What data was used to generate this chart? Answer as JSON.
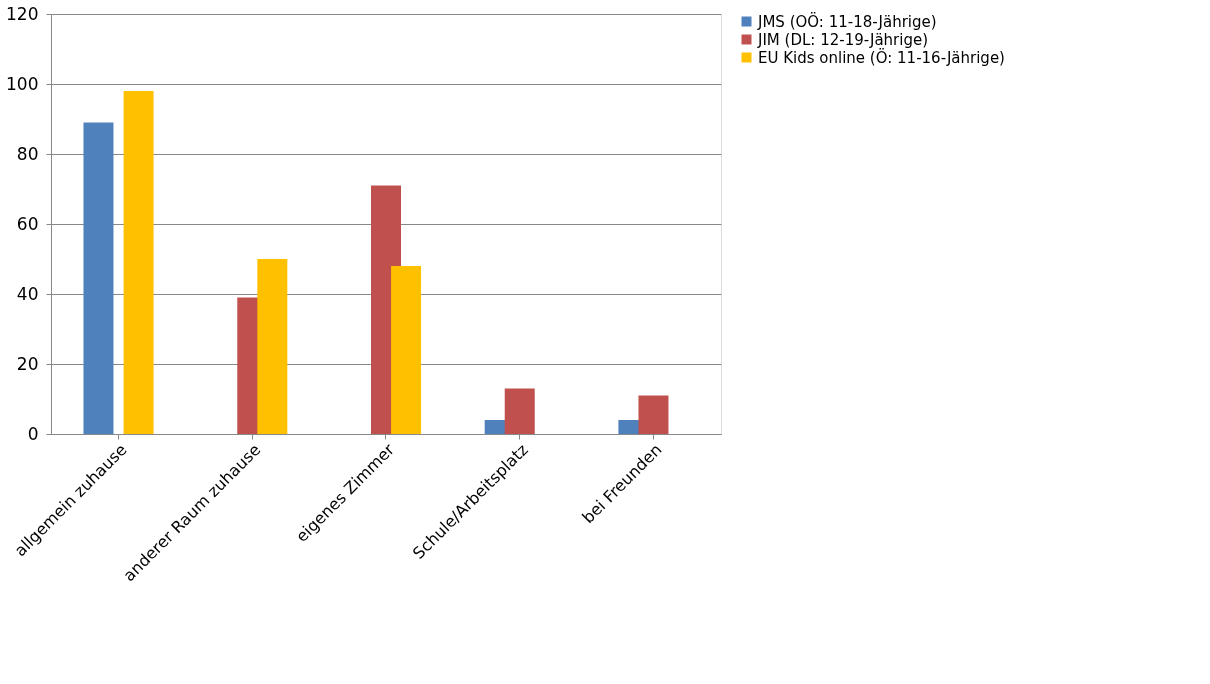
{
  "chart_data": {
    "type": "bar",
    "categories": [
      "allgemein zuhause",
      "anderer Raum zuhause",
      "eigenes Zimmer",
      "Schule/Arbeitsplatz",
      "bei Freunden"
    ],
    "series": [
      {
        "name": "JMS (OÖ: 11-18-Jährige)",
        "color": "#4f81bd",
        "values": [
          89,
          null,
          null,
          4,
          4
        ]
      },
      {
        "name": "JIM (DL: 12-19-Jährige)",
        "color": "#c0504d",
        "values": [
          null,
          39,
          71,
          13,
          11
        ]
      },
      {
        "name": "EU Kids online (Ö: 11-16-Jährige)",
        "color": "#ffc000",
        "values": [
          98,
          50,
          48,
          null,
          null
        ]
      }
    ],
    "ylim": [
      0,
      120
    ],
    "yticks": [
      0,
      20,
      40,
      60,
      80,
      100,
      120
    ],
    "grid": "y",
    "legend": "right"
  }
}
